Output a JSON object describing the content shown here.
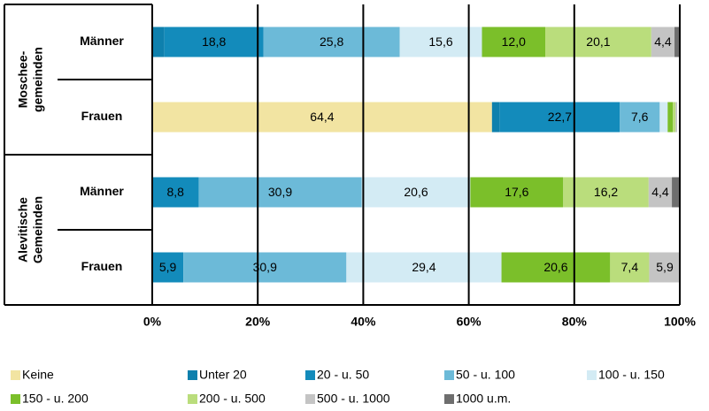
{
  "chart_data": {
    "type": "stacked_barh",
    "groups": [
      {
        "lines": [
          "Moschee-",
          "gemeinden"
        ]
      },
      {
        "lines": [
          "Alevitische",
          "Gemeinden"
        ]
      }
    ],
    "categories": [
      "Männer",
      "Frauen",
      "Männer",
      "Frauen"
    ],
    "xlim": [
      0,
      100
    ],
    "xticks": [
      {
        "value": 0,
        "label": "0%"
      },
      {
        "value": 20,
        "label": "20%"
      },
      {
        "value": 40,
        "label": "40%"
      },
      {
        "value": 60,
        "label": "60%"
      },
      {
        "value": 80,
        "label": "80%"
      },
      {
        "value": 100,
        "label": "100%"
      }
    ],
    "grid": true,
    "series": [
      {
        "name": "Keine",
        "color": "#f2e4a2",
        "values": [
          0,
          64.4,
          0,
          0
        ],
        "value_labels": [
          null,
          "64,4",
          null,
          null
        ]
      },
      {
        "name": "Unter 20",
        "color": "#0e80ad",
        "values": [
          2.3,
          1.5,
          0,
          0
        ],
        "value_labels": [
          null,
          null,
          null,
          null
        ]
      },
      {
        "name": "20 - u. 50",
        "color": "#138bbb",
        "values": [
          18.8,
          22.7,
          8.8,
          5.9
        ],
        "value_labels": [
          "18,8",
          "22,7",
          "8,8",
          "5,9"
        ]
      },
      {
        "name": "50 - u. 100",
        "color": "#6cbad8",
        "values": [
          25.8,
          7.6,
          30.9,
          30.9
        ],
        "value_labels": [
          "25,8",
          "7,6",
          "30,9",
          "30,9"
        ]
      },
      {
        "name": "100 - u. 150",
        "color": "#d3ebf4",
        "values": [
          15.6,
          1.5,
          20.6,
          29.4
        ],
        "value_labels": [
          "15,6",
          null,
          "20,6",
          "29,4"
        ]
      },
      {
        "name": "150 - u. 200",
        "color": "#7bbf2a",
        "values": [
          12.0,
          1.0,
          17.6,
          20.6
        ],
        "value_labels": [
          "12,0",
          null,
          "17,6",
          "20,6"
        ]
      },
      {
        "name": "200 - u. 500",
        "color": "#badd7c",
        "values": [
          20.1,
          0.5,
          16.2,
          7.4
        ],
        "value_labels": [
          "20,1",
          null,
          "16,2",
          "7,4"
        ]
      },
      {
        "name": "500 - u. 1000",
        "color": "#c4c4c4",
        "values": [
          4.4,
          0.3,
          4.4,
          5.9
        ],
        "value_labels": [
          "4,4",
          null,
          "4,4",
          "5,9"
        ]
      },
      {
        "name": "1000 u.m.",
        "color": "#6e6e6e",
        "values": [
          1.0,
          0,
          1.5,
          0
        ],
        "value_labels": [
          null,
          null,
          null,
          null
        ]
      }
    ]
  }
}
